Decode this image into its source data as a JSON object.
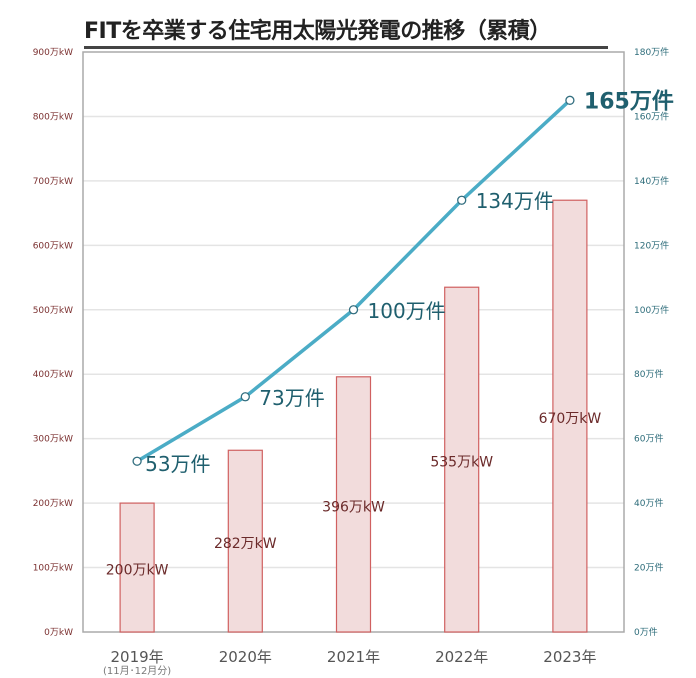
{
  "title": "FITを卒業する住宅用太陽光発電の推移（累積）",
  "chart_data": {
    "type": "bar+line",
    "title": "FITを卒業する住宅用太陽光発電の推移（累積）",
    "categories": [
      "2019年",
      "2020年",
      "2021年",
      "2022年",
      "2023年"
    ],
    "category_note": "(11月･12月分)",
    "bars": {
      "axis": "left",
      "unit": "万kW",
      "values": [
        200,
        282,
        396,
        535,
        670
      ],
      "labels": [
        "200万kW",
        "282万kW",
        "396万kW",
        "535万kW",
        "670万kW"
      ],
      "color": "#f2dcdc",
      "border": "#d06060"
    },
    "line": {
      "axis": "right",
      "unit": "万件",
      "values": [
        53,
        73,
        100,
        134,
        165
      ],
      "labels": [
        "53万件",
        "73万件",
        "100万件",
        "134万件",
        "165万件"
      ],
      "color": "#4bacc6",
      "label_color": "#1f5f6e"
    },
    "left_axis": {
      "range": [
        0,
        900
      ],
      "ticks": [
        "0万kW",
        "100万kW",
        "200万kW",
        "300万kW",
        "400万kW",
        "500万kW",
        "600万kW",
        "700万kW",
        "800万kW",
        "900万kW"
      ],
      "color": "#7b3030"
    },
    "right_axis": {
      "range": [
        0,
        180
      ],
      "ticks": [
        "0万件",
        "20万件",
        "40万件",
        "60万件",
        "80万件",
        "100万件",
        "120万件",
        "140万件",
        "160万件",
        "180万件"
      ],
      "color": "#2d6c7a"
    },
    "grid": true
  }
}
